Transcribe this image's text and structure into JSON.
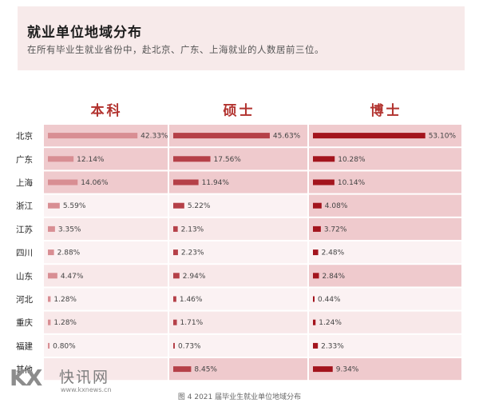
{
  "header": {
    "title": "就业单位地域分布",
    "subtitle": "在所有毕业生就业省份中，赴北京、广东、上海就业的人数居前三位。"
  },
  "caption": "图 4   2021 届毕业生就业单位地域分布",
  "watermark": {
    "logo": "KX",
    "name": "快讯网",
    "url": "www.kxnews.cn"
  },
  "colors": {
    "bachelor_bar": "#d88e93",
    "master_bar": "#b54048",
    "doctor_bar": "#a3141d",
    "title": "#b2332f",
    "band_light": "#f8e8e9",
    "band_dark": "#efcacd"
  },
  "chart_data": {
    "type": "bar",
    "orientation": "horizontal",
    "categories": [
      "北京",
      "广东",
      "上海",
      "浙江",
      "江苏",
      "四川",
      "山东",
      "河北",
      "重庆",
      "福建",
      "其他"
    ],
    "series": [
      {
        "name": "本科",
        "values": [
          42.33,
          12.14,
          14.06,
          5.59,
          3.35,
          2.88,
          4.47,
          1.28,
          1.28,
          0.8,
          null
        ],
        "labels": [
          "42.33%",
          "12.14%",
          "14.06%",
          "5.59%",
          "3.35%",
          "2.88%",
          "4.47%",
          "1.28%",
          "1.28%",
          "0.80%",
          ""
        ]
      },
      {
        "name": "硕士",
        "values": [
          45.63,
          17.56,
          11.94,
          5.22,
          2.13,
          2.23,
          2.94,
          1.46,
          1.71,
          0.73,
          8.45
        ],
        "labels": [
          "45.63%",
          "17.56%",
          "11.94%",
          "5.22%",
          "2.13%",
          "2.23%",
          "2.94%",
          "1.46%",
          "1.71%",
          "0.73%",
          "8.45%"
        ]
      },
      {
        "name": "博士",
        "values": [
          53.1,
          10.28,
          10.14,
          4.08,
          3.72,
          2.48,
          2.84,
          0.44,
          1.24,
          2.33,
          9.34
        ],
        "labels": [
          "53.10%",
          "10.28%",
          "10.14%",
          "4.08%",
          "3.72%",
          "2.48%",
          "2.84%",
          "0.44%",
          "1.24%",
          "2.33%",
          "9.34%"
        ]
      }
    ],
    "unit": "%"
  }
}
